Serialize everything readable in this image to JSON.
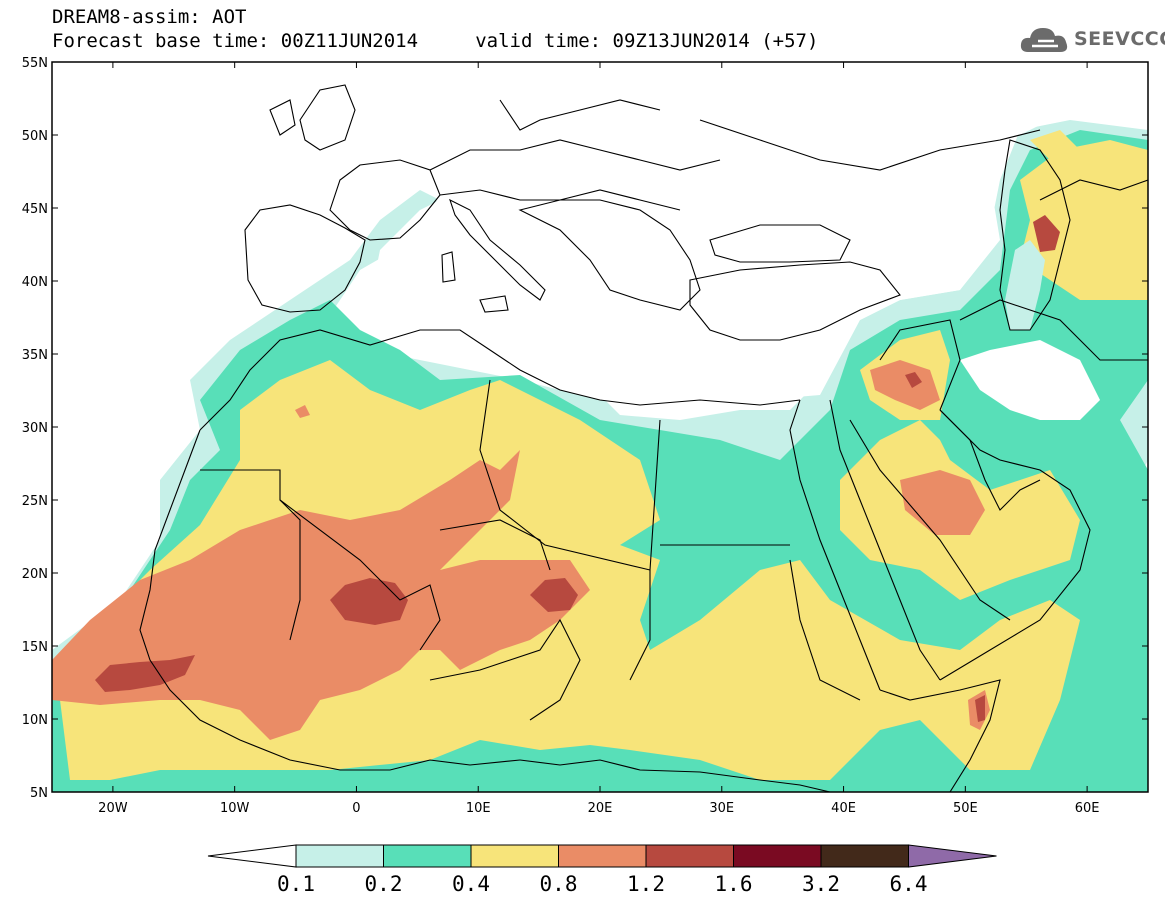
{
  "header": {
    "title_line1": "DREAM8-assim: AOT",
    "title_line2": "Forecast base time: 00Z11JUN2014     valid time: 09Z13JUN2014 (+57)"
  },
  "logo": {
    "text": "SEEVCCC",
    "icon": "cloud-logo-icon",
    "color": "#6b6b6b"
  },
  "axes": {
    "lon_range": [
      -25,
      65
    ],
    "lat_range": [
      5,
      55
    ],
    "x_ticks": [
      {
        "value": -20,
        "label": "20W"
      },
      {
        "value": -10,
        "label": "10W"
      },
      {
        "value": 0,
        "label": "0"
      },
      {
        "value": 10,
        "label": "10E"
      },
      {
        "value": 20,
        "label": "20E"
      },
      {
        "value": 30,
        "label": "30E"
      },
      {
        "value": 40,
        "label": "40E"
      },
      {
        "value": 50,
        "label": "50E"
      },
      {
        "value": 60,
        "label": "60E"
      }
    ],
    "y_ticks": [
      {
        "value": 5,
        "label": "5N"
      },
      {
        "value": 10,
        "label": "10N"
      },
      {
        "value": 15,
        "label": "15N"
      },
      {
        "value": 20,
        "label": "20N"
      },
      {
        "value": 25,
        "label": "25N"
      },
      {
        "value": 30,
        "label": "30N"
      },
      {
        "value": 35,
        "label": "35N"
      },
      {
        "value": 40,
        "label": "40N"
      },
      {
        "value": 45,
        "label": "45N"
      },
      {
        "value": 50,
        "label": "50N"
      },
      {
        "value": 55,
        "label": "55N"
      }
    ]
  },
  "colorbar": {
    "levels": [
      "0.1",
      "0.2",
      "0.4",
      "0.8",
      "1.2",
      "1.6",
      "3.2",
      "6.4"
    ],
    "colors": [
      "#ffffff",
      "#c6f0e8",
      "#58dfb8",
      "#f7e47a",
      "#ea8c66",
      "#b7493f",
      "#7a0a22",
      "#42291a",
      "#8f6aa8"
    ]
  },
  "aot_fields": {
    "colors": {
      "c01": "#c6f0e8",
      "c02": "#58dfb8",
      "c04": "#f7e47a",
      "c08": "#ea8c66",
      "c12": "#b7493f",
      "land": "#ffffff",
      "border": "#000000"
    }
  }
}
